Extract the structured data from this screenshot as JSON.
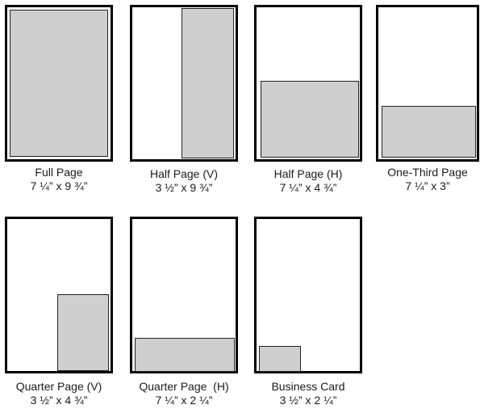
{
  "sizes": [
    {
      "name": "Full Page",
      "dimensions": "7 ¼” x 9 ¾”"
    },
    {
      "name": "Half Page (V)",
      "dimensions": "3 ½” x 9 ¾”"
    },
    {
      "name": "Half Page (H)",
      "dimensions": "7 ¼” x 4 ¾”"
    },
    {
      "name": "One-Third Page",
      "dimensions": "7 ¼” x 3”"
    },
    {
      "name": "Quarter Page (V)",
      "dimensions": "3 ½” x 4 ¾”"
    },
    {
      "name": "Quarter Page  (H)",
      "dimensions": "7 ¼” x 2 ¼”"
    },
    {
      "name": "Business Card",
      "dimensions": "3 ½” x 2 ¼”"
    }
  ],
  "colors": {
    "page_border": "#000000",
    "ad_fill": "#cfcfcf"
  }
}
